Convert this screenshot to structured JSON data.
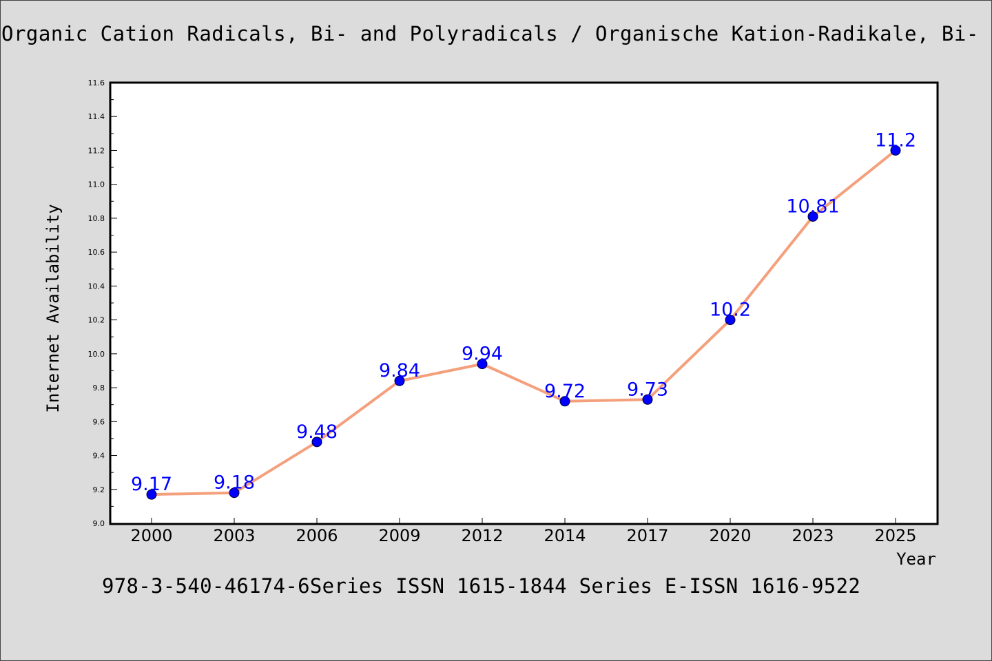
{
  "title": "Organic Cation Radicals, Bi- and Polyradicals / Organische Kation-Radikale, Bi-",
  "footer": "978-3-540-46174-6Series ISSN 1615-1844 Series E-ISSN 1616-9522",
  "colors": {
    "background": "#dcdcdc",
    "plot_background": "#ffffff",
    "line": "#f4a07c",
    "marker": "#0000ff",
    "data_label": "#0000ff"
  },
  "chart_data": {
    "type": "line",
    "title": "Organic Cation Radicals, Bi- and Polyradicals / Organische Kation-Radikale, Bi-",
    "xlabel": "Year",
    "ylabel": "Internet Availability",
    "categories": [
      "2000",
      "2003",
      "2006",
      "2009",
      "2012",
      "2014",
      "2017",
      "2020",
      "2023",
      "2025"
    ],
    "series": [
      {
        "values": [
          9.17,
          9.18,
          9.48,
          9.84,
          9.94,
          9.72,
          9.73,
          10.2,
          10.81,
          11.2
        ],
        "data_labels": [
          "9.17",
          "9.18",
          "9.48",
          "9.84",
          "9.94",
          "9.72",
          "9.73",
          "10.2",
          "10.81",
          "11.2"
        ]
      }
    ],
    "ylim": [
      9.0,
      11.6
    ],
    "yticks": [
      "9.0",
      "9.2",
      "9.4",
      "9.6",
      "9.8",
      "10.0",
      "10.2",
      "10.4",
      "10.6",
      "10.8",
      "11.0",
      "11.2",
      "11.4",
      "11.6"
    ],
    "grid": false,
    "legend": "none"
  }
}
